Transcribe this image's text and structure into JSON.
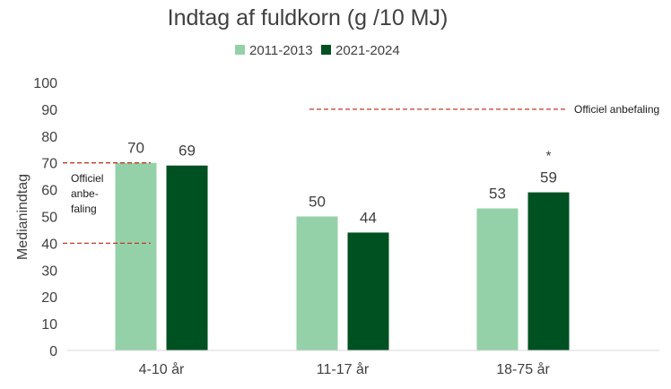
{
  "chart_data": {
    "type": "bar",
    "title": "Indtag af fuldkorn (g /10 MJ)",
    "xlabel": "",
    "ylabel": "Medianindtag",
    "ylim": [
      0,
      100
    ],
    "yticks": [
      0,
      10,
      20,
      30,
      40,
      50,
      60,
      70,
      80,
      90,
      100
    ],
    "grid": false,
    "legend_position": "top",
    "categories": [
      "4-10 år",
      "11-17 år",
      "18-75 år"
    ],
    "series": [
      {
        "name": "2011-2013",
        "color": "#94d1a9",
        "values": [
          70,
          50,
          53
        ]
      },
      {
        "name": "2021-2024",
        "color": "#005121",
        "values": [
          69,
          44,
          59
        ]
      }
    ],
    "significance_marker": {
      "series": 1,
      "category": 2,
      "symbol": "*"
    },
    "recommendations": [
      {
        "category": 0,
        "label": "Officiel anbe- faling",
        "label_lines": [
          "Officiel",
          "anbe-",
          "faling"
        ],
        "range": [
          40,
          70
        ],
        "color": "#c0392b"
      },
      {
        "categories": [
          1,
          2
        ],
        "label": "Officiel anbefaling",
        "value": 90,
        "color": "#c0392b"
      }
    ]
  }
}
